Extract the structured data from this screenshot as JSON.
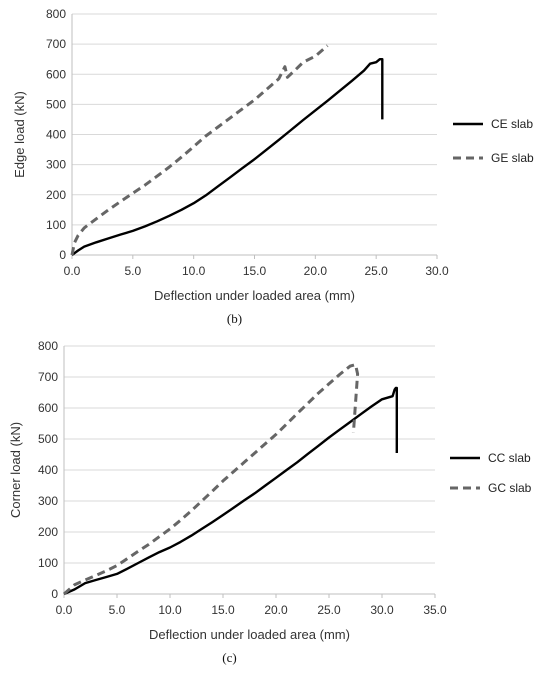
{
  "chart_data": [
    {
      "type": "line",
      "caption": "(b)",
      "xlabel": "Deflection under loaded area (mm)",
      "ylabel": "Edge load (kN)",
      "xlim": [
        0,
        30
      ],
      "ylim": [
        0,
        800
      ],
      "xticks": [
        0,
        5,
        10,
        15,
        20,
        25,
        30
      ],
      "yticks": [
        0,
        100,
        200,
        300,
        400,
        500,
        600,
        700,
        800
      ],
      "xtick_labels": [
        "0.0",
        "5.0",
        "10.0",
        "15.0",
        "20.0",
        "25.0",
        "30.0"
      ],
      "ytick_labels": [
        "0",
        "100",
        "200",
        "300",
        "400",
        "500",
        "600",
        "700",
        "800"
      ],
      "grid": "horizontal",
      "legend_position": "right",
      "series": [
        {
          "name": "CE slab",
          "style": "solid",
          "color": "#000000",
          "x": [
            0,
            0.5,
            1,
            2,
            3,
            4,
            5,
            6,
            7,
            8,
            9,
            10,
            11,
            12,
            13,
            14,
            15,
            16,
            17,
            18,
            19,
            20,
            21,
            22,
            23,
            24,
            24.5,
            25,
            25.3,
            25.5,
            25.5
          ],
          "y": [
            0,
            15,
            28,
            42,
            55,
            68,
            80,
            95,
            112,
            130,
            150,
            172,
            198,
            228,
            258,
            288,
            318,
            350,
            382,
            415,
            448,
            480,
            512,
            545,
            578,
            612,
            635,
            640,
            650,
            650,
            450
          ]
        },
        {
          "name": "GE slab",
          "style": "dashed",
          "color": "#666666",
          "x": [
            0,
            0.2,
            0.5,
            1,
            2,
            3,
            4,
            5,
            6,
            7,
            8,
            9,
            10,
            11,
            12,
            13,
            14,
            15,
            16,
            17,
            17.5,
            17.7,
            18.5,
            19,
            20,
            21
          ],
          "y": [
            0,
            40,
            65,
            90,
            120,
            150,
            178,
            205,
            232,
            262,
            292,
            325,
            360,
            395,
            425,
            455,
            485,
            515,
            550,
            585,
            625,
            590,
            620,
            640,
            660,
            695
          ]
        }
      ]
    },
    {
      "type": "line",
      "caption": "(c)",
      "xlabel": "Deflection under loaded area (mm)",
      "ylabel": "Corner load (kN)",
      "xlim": [
        0,
        35
      ],
      "ylim": [
        0,
        800
      ],
      "xticks": [
        0,
        5,
        10,
        15,
        20,
        25,
        30,
        35
      ],
      "yticks": [
        0,
        100,
        200,
        300,
        400,
        500,
        600,
        700,
        800
      ],
      "xtick_labels": [
        "0.0",
        "5.0",
        "10.0",
        "15.0",
        "20.0",
        "25.0",
        "30.0",
        "35.0"
      ],
      "ytick_labels": [
        "0",
        "100",
        "200",
        "300",
        "400",
        "500",
        "600",
        "700",
        "800"
      ],
      "grid": "horizontal",
      "legend_position": "right",
      "series": [
        {
          "name": "CC slab",
          "style": "solid",
          "color": "#000000",
          "x": [
            0,
            1,
            2,
            3,
            4,
            5,
            6,
            7,
            8,
            9,
            10,
            11,
            12,
            13,
            14,
            15,
            16,
            17,
            18,
            19,
            20,
            21,
            22,
            23,
            24,
            25,
            26,
            27,
            28,
            29,
            30,
            31,
            31.2,
            31.3,
            31.4,
            31.4
          ],
          "y": [
            0,
            15,
            35,
            45,
            55,
            65,
            82,
            100,
            118,
            135,
            150,
            168,
            188,
            210,
            232,
            255,
            278,
            302,
            325,
            350,
            375,
            400,
            425,
            452,
            478,
            505,
            530,
            555,
            580,
            605,
            628,
            638,
            660,
            665,
            665,
            455
          ]
        },
        {
          "name": "GC slab",
          "style": "dashed",
          "color": "#666666",
          "x": [
            0,
            0.5,
            1,
            2,
            3,
            4,
            5,
            6,
            7,
            8,
            9,
            10,
            11,
            12,
            13,
            14,
            15,
            16,
            17,
            18,
            19,
            20,
            21,
            22,
            23,
            24,
            25,
            26,
            27,
            27.5,
            27.7,
            27.3
          ],
          "y": [
            0,
            15,
            30,
            45,
            60,
            75,
            92,
            115,
            138,
            160,
            185,
            210,
            238,
            268,
            300,
            332,
            365,
            395,
            425,
            455,
            485,
            515,
            548,
            582,
            615,
            648,
            678,
            708,
            735,
            740,
            710,
            520
          ]
        }
      ]
    }
  ]
}
